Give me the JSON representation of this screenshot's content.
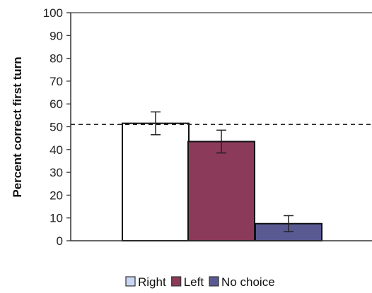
{
  "chart_data": {
    "type": "bar",
    "categories": [
      "Right",
      "Left",
      "No choice"
    ],
    "values": [
      51.5,
      43.5,
      7.5
    ],
    "error": [
      5,
      5,
      3.5
    ],
    "colors": [
      "#ffffff",
      "#8c3a5a",
      "#5a5a93"
    ],
    "title": "",
    "xlabel": "",
    "ylabel": "Percent correct first turn",
    "ylim": [
      0,
      100
    ],
    "yticks": [
      0,
      10,
      20,
      30,
      40,
      50,
      60,
      70,
      80,
      90,
      100
    ],
    "reference_line": 51,
    "legend": {
      "position": "bottom-center",
      "entries": [
        {
          "label": "Right",
          "color": "#c8d6f2"
        },
        {
          "label": "Left",
          "color": "#8c3a5a"
        },
        {
          "label": "No choice",
          "color": "#5a5a93"
        }
      ]
    },
    "grid": false
  }
}
